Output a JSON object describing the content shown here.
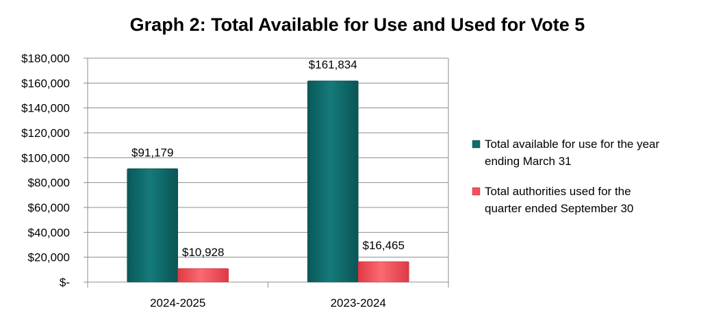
{
  "chart_data": {
    "type": "bar",
    "title": "Graph 2: Total Available for Use and Used for Vote 5",
    "categories": [
      "2024-2025",
      "2023-2024"
    ],
    "series": [
      {
        "name": "Total available for use for the year ending March 31",
        "legend_lines": [
          "Total available for use for the year",
          "ending March 31"
        ],
        "values": [
          91179,
          161834
        ],
        "labels": [
          "$91,179",
          "$161,834"
        ],
        "color": "#0e6b6b"
      },
      {
        "name": "Total authorities used for the quarter ended September 30",
        "legend_lines": [
          "Total authorities used for the",
          "quarter ended September 30"
        ],
        "values": [
          10928,
          16465
        ],
        "labels": [
          "$10,928",
          "$16,465"
        ],
        "color": "#f0515a"
      }
    ],
    "ylim": [
      0,
      180000
    ],
    "yticks": [
      0,
      20000,
      40000,
      60000,
      80000,
      100000,
      120000,
      140000,
      160000,
      180000
    ],
    "ytick_labels": [
      "$-",
      "$20,000",
      "$40,000",
      "$60,000",
      "$80,000",
      "$100,000",
      "$120,000",
      "$140,000",
      "$160,000",
      "$180,000"
    ],
    "grid": true,
    "legend_position": "right"
  }
}
